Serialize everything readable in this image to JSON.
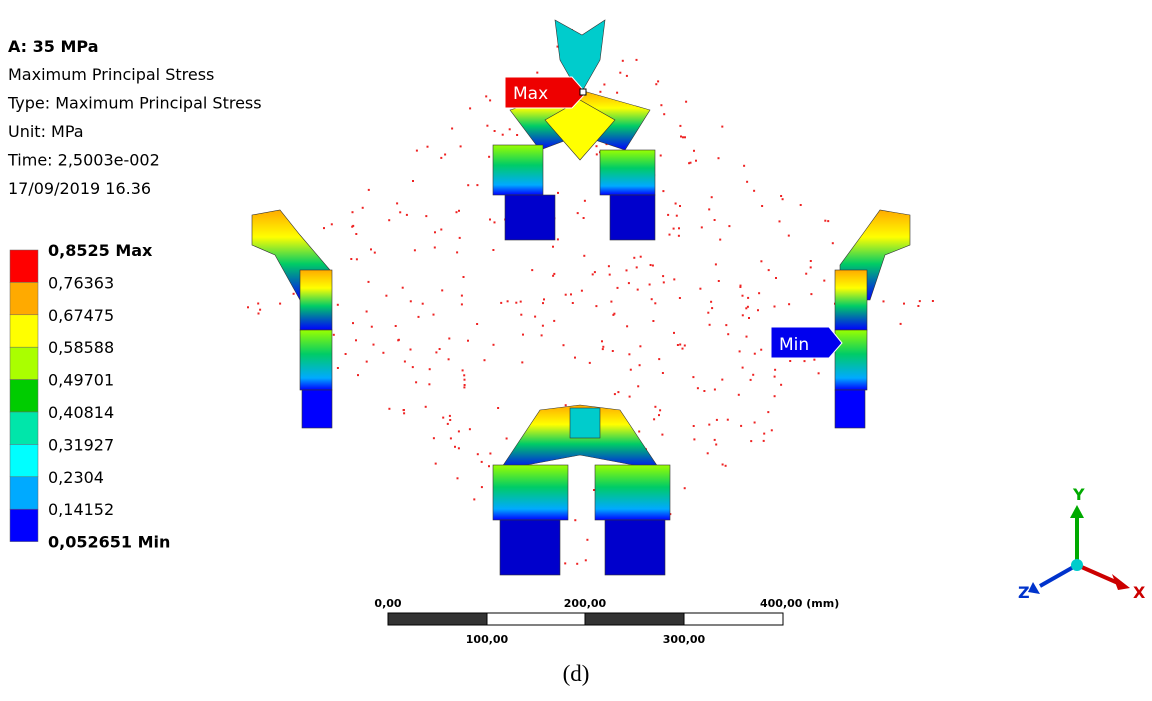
{
  "header": {
    "title": "A: 35 MPa",
    "lines": [
      "Maximum Principal Stress",
      "Type: Maximum Principal Stress",
      "Unit: MPa",
      "Time: 2,5003e-002",
      "17/09/2019 16.36"
    ]
  },
  "legend": {
    "labels": [
      "0,8525 Max",
      "0,76363",
      "0,67475",
      "0,58588",
      "0,49701",
      "0,40814",
      "0,31927",
      "0,2304",
      "0,14152",
      "0,052651 Min"
    ],
    "colors": [
      "#ff0000",
      "#ffaa00",
      "#ffff00",
      "#aaff00",
      "#00cc00",
      "#00e6aa",
      "#00ffff",
      "#00aaff",
      "#0000ff"
    ]
  },
  "probes": {
    "max": "Max",
    "min": "Min"
  },
  "scale_bar": {
    "top": [
      "0,00",
      "200,00",
      "400,00 (mm)"
    ],
    "bottom": [
      "100,00",
      "300,00"
    ]
  },
  "triad": {
    "y": "Y",
    "z": "Z",
    "x": "X"
  },
  "caption": "(d)"
}
